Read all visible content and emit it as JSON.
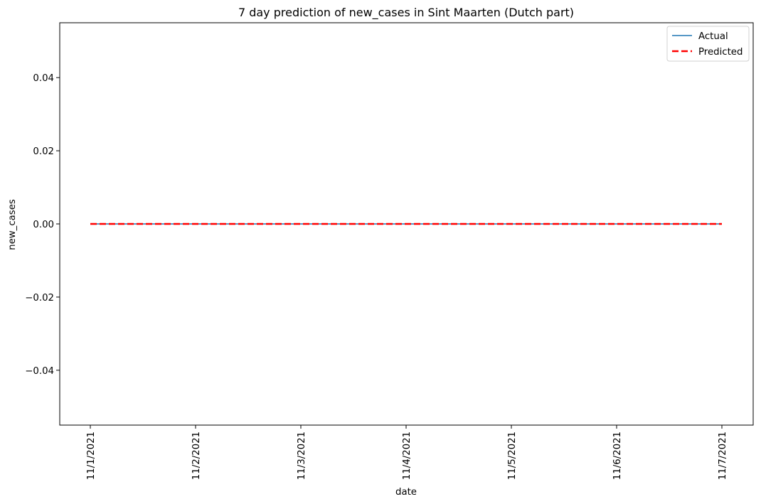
{
  "chart_data": {
    "type": "line",
    "title": "7 day prediction of new_cases in Sint Maarten (Dutch part)",
    "xlabel": "date",
    "ylabel": "new_cases",
    "x": [
      "11/1/2021",
      "11/2/2021",
      "11/3/2021",
      "11/4/2021",
      "11/5/2021",
      "11/6/2021",
      "11/7/2021"
    ],
    "ylim": [
      -0.055,
      0.055
    ],
    "yticks": [
      -0.04,
      -0.02,
      0.0,
      0.02,
      0.04
    ],
    "ytick_labels": [
      "−0.04",
      "−0.02",
      "0.00",
      "0.02",
      "0.04"
    ],
    "grid": false,
    "legend_position": "top-right",
    "series": [
      {
        "name": "Actual",
        "values": [
          0,
          0,
          0,
          0,
          0,
          0,
          0
        ],
        "color": "#1f77b4",
        "style": "solid"
      },
      {
        "name": "Predicted",
        "values": [
          0,
          0,
          0,
          0,
          0,
          0,
          0
        ],
        "color": "#ff0000",
        "style": "dashed"
      }
    ]
  }
}
